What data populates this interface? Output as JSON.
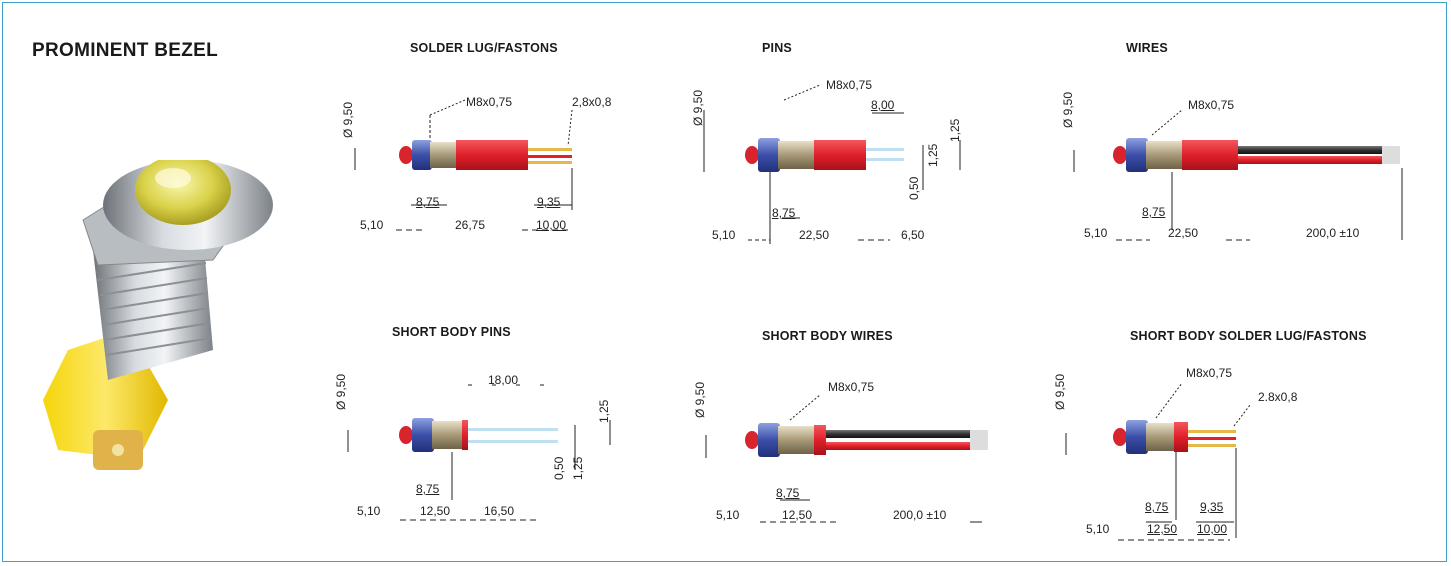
{
  "main_title": "PROMINENT BEZEL",
  "colors": {
    "border": "#3f9fc4",
    "body_red": "#e0202a",
    "nut_blue": "#3b4fa8",
    "wire_black": "#333333",
    "lens_yellow": "#e8e04a"
  },
  "sections": {
    "solder": {
      "title": "SOLDER LUG/FASTONS",
      "thread": "M8x0,75",
      "lug": "2,8x0,8",
      "diameter": "Ø 9,50",
      "d1": "8,75",
      "d2": "9,35",
      "d3": "5,10",
      "d4": "26,75",
      "d5": "10,00"
    },
    "pins": {
      "title": "PINS",
      "thread": "M8x0,75",
      "d_top": "8,00",
      "diameter": "Ø 9,50",
      "r1": "1,25",
      "r2": "1,25",
      "r3": "0,50",
      "d1": "8,75",
      "d2": "5,10",
      "d3": "22,50",
      "d4": "6,50"
    },
    "wires": {
      "title": "WIRES",
      "thread": "M8x0,75",
      "diameter": "Ø 9,50",
      "d1": "8,75",
      "d2": "5,10",
      "d3": "22,50",
      "d4": "200,0 ±10"
    },
    "sb_pins": {
      "title": "SHORT BODY PINS",
      "d_top": "18,00",
      "diameter": "Ø 9,50",
      "r1": "1,25",
      "r2": "1,25",
      "r3": "0,50",
      "d1": "8,75",
      "d2": "5,10",
      "d3": "12,50",
      "d4": "16,50"
    },
    "sb_wires": {
      "title": "SHORT BODY WIRES",
      "thread": "M8x0,75",
      "diameter": "Ø 9,50",
      "d1": "8,75",
      "d2": "5,10",
      "d3": "12,50",
      "d4": "200,0 ±10"
    },
    "sb_solder": {
      "title": "SHORT BODY SOLDER LUG/FASTONS",
      "thread": "M8x0,75",
      "lug": "2.8x0,8",
      "diameter": "Ø 9,50",
      "d1": "8,75",
      "d2": "9,35",
      "d3": "5,10",
      "d4": "12,50",
      "d5": "10,00"
    }
  }
}
